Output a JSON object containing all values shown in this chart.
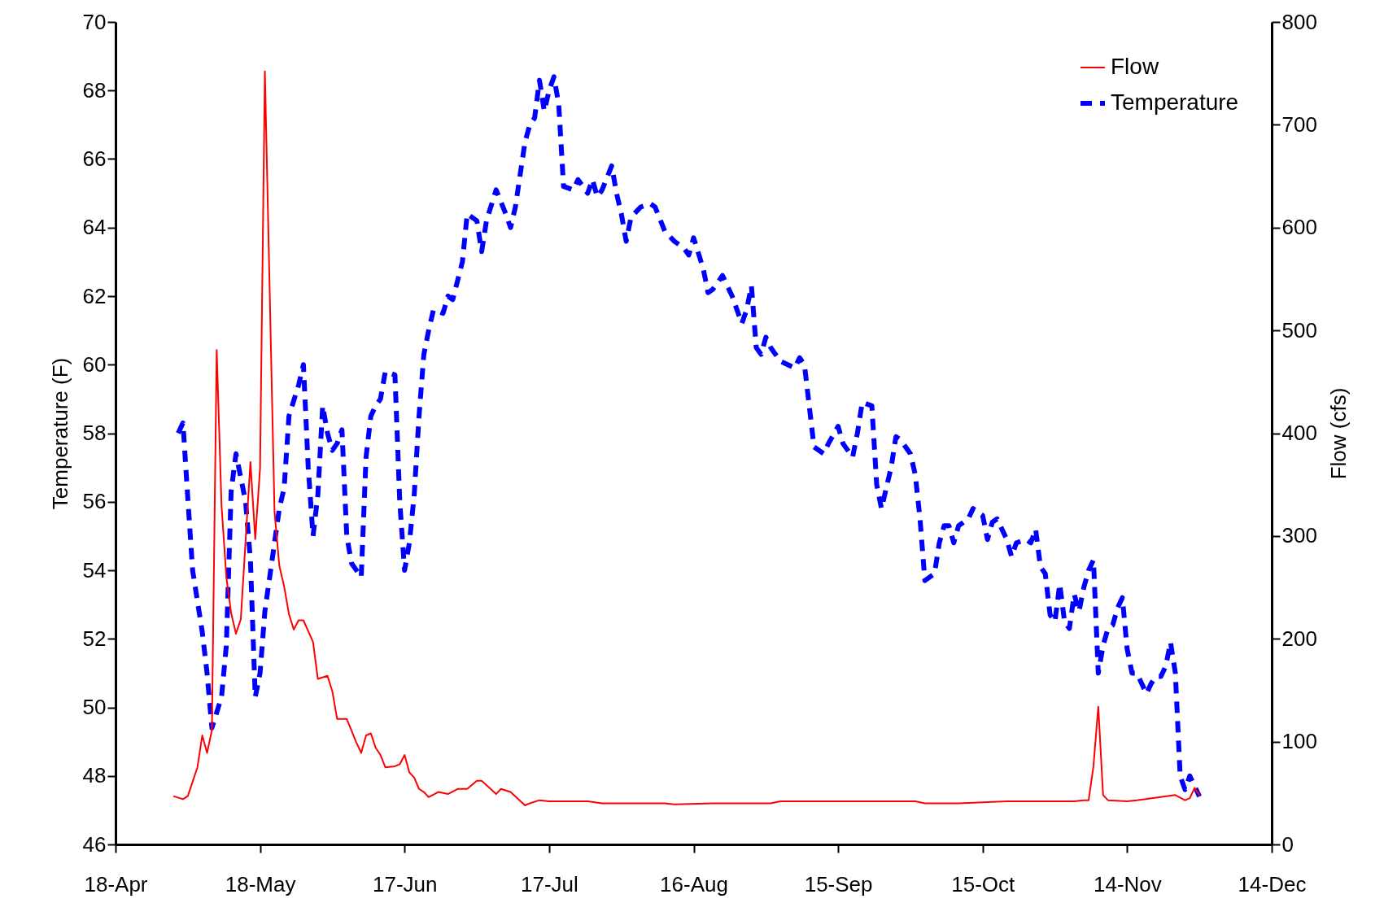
{
  "chart_data": {
    "type": "line",
    "ylabel": "Temperature (F)",
    "y2label": "Flow (cfs)",
    "xlim": [
      "--04-18",
      "--12-14"
    ],
    "xticks": [
      {
        "value": "--04-18",
        "label": "18-Apr"
      },
      {
        "value": "--05-18",
        "label": "18-May"
      },
      {
        "value": "--06-17",
        "label": "17-Jun"
      },
      {
        "value": "--07-17",
        "label": "17-Jul"
      },
      {
        "value": "--08-16",
        "label": "16-Aug"
      },
      {
        "value": "--09-15",
        "label": "15-Sep"
      },
      {
        "value": "--10-15",
        "label": "15-Oct"
      },
      {
        "value": "--11-14",
        "label": "14-Nov"
      },
      {
        "value": "--12-14",
        "label": "14-Dec"
      }
    ],
    "ylim": [
      46,
      70
    ],
    "yticks": [
      46,
      48,
      50,
      52,
      54,
      56,
      58,
      60,
      62,
      64,
      66,
      68,
      70
    ],
    "y2lim": [
      0,
      800
    ],
    "y2ticks": [
      0,
      100,
      200,
      300,
      400,
      500,
      600,
      700,
      800
    ],
    "legend": "top right",
    "series": [
      {
        "name": "Flow",
        "color": "#ff0000",
        "axis": "y2",
        "line_style": "solid",
        "x": [
          "--04-30",
          "--05-02",
          "--05-03",
          "--05-05",
          "--05-06",
          "--05-07",
          "--05-08",
          "--05-09",
          "--05-10",
          "--05-11",
          "--05-12",
          "--05-13",
          "--05-14",
          "--05-16",
          "--05-17",
          "--05-18",
          "--05-19",
          "--05-21",
          "--05-22",
          "--05-23",
          "--05-24",
          "--05-25",
          "--05-26",
          "--05-27",
          "--05-29",
          "--05-30",
          "--06-01",
          "--06-02",
          "--06-03",
          "--06-05",
          "--06-07",
          "--06-08",
          "--06-09",
          "--06-10",
          "--06-11",
          "--06-12",
          "--06-13",
          "--06-15",
          "--06-16",
          "--06-17",
          "--06-18",
          "--06-19",
          "--06-20",
          "--06-21",
          "--06-22",
          "--06-24",
          "--06-26",
          "--06-28",
          "--06-30",
          "--07-02",
          "--07-03",
          "--07-06",
          "--07-07",
          "--07-09",
          "--07-12",
          "--07-13",
          "--07-15",
          "--07-17",
          "--07-25",
          "--07-28",
          "--08-10",
          "--08-12",
          "--08-20",
          "--09-01",
          "--09-03",
          "--10-01",
          "--10-03",
          "--10-10",
          "--10-20",
          "--11-03",
          "--11-05",
          "--11-06",
          "--11-07",
          "--11-08",
          "--11-09",
          "--11-10",
          "--11-14",
          "--11-16",
          "--11-24",
          "--11-26",
          "--11-27",
          "--11-28",
          "--11-29"
        ],
        "values": [
          47,
          44,
          47,
          75,
          106,
          89,
          111,
          481,
          330,
          260,
          225,
          205,
          219,
          372,
          297,
          366,
          752,
          324,
          271,
          251,
          224,
          209,
          218,
          218,
          197,
          161,
          164,
          149,
          122,
          122,
          99,
          89,
          106,
          108,
          94,
          87,
          75,
          76,
          78,
          87,
          70,
          65,
          54,
          51,
          46,
          51,
          49,
          54,
          54,
          62,
          62,
          49,
          54,
          51,
          38,
          40,
          43,
          42,
          42,
          40,
          40,
          39,
          40,
          40,
          42,
          42,
          40,
          40,
          42,
          42,
          43,
          43,
          76,
          134,
          48,
          43,
          42,
          43,
          48,
          43,
          45,
          55,
          48
        ]
      },
      {
        "name": "Temperature",
        "color": "#0000ff",
        "axis": "y",
        "line_style": "dashed",
        "x": [
          "--05-01",
          "--05-02",
          "--05-03",
          "--05-04",
          "--05-06",
          "--05-07",
          "--05-08",
          "--05-10",
          "--05-11",
          "--05-12",
          "--05-13",
          "--05-15",
          "--05-16",
          "--05-17",
          "--05-18",
          "--05-19",
          "--05-21",
          "--05-22",
          "--05-23",
          "--05-24",
          "--05-26",
          "--05-27",
          "--05-28",
          "--05-29",
          "--05-30",
          "--05-31",
          "--06-01",
          "--06-02",
          "--06-03",
          "--06-04",
          "--06-05",
          "--06-06",
          "--06-08",
          "--06-09",
          "--06-10",
          "--06-11",
          "--06-12",
          "--06-13",
          "--06-15",
          "--06-16",
          "--06-17",
          "--06-18",
          "--06-19",
          "--06-20",
          "--06-21",
          "--06-22",
          "--06-23",
          "--06-25",
          "--06-26",
          "--06-27",
          "--06-29",
          "--06-30",
          "--07-02",
          "--07-03",
          "--07-04",
          "--07-06",
          "--07-08",
          "--07-09",
          "--07-10",
          "--07-12",
          "--07-13",
          "--07-14",
          "--07-15",
          "--07-16",
          "--07-17",
          "--07-18",
          "--07-19",
          "--07-20",
          "--07-22",
          "--07-23",
          "--07-25",
          "--07-26",
          "--07-27",
          "--07-28",
          "--07-30",
          "--07-31",
          "--08-01",
          "--08-02",
          "--08-03",
          "--08-05",
          "--08-07",
          "--08-08",
          "--08-10",
          "--08-12",
          "--08-14",
          "--08-15",
          "--08-16",
          "--08-18",
          "--08-19",
          "--08-20",
          "--08-22",
          "--08-24",
          "--08-26",
          "--08-27",
          "--08-28",
          "--08-29",
          "--08-30",
          "--08-31",
          "--09-01",
          "--09-03",
          "--09-06",
          "--09-07",
          "--09-08",
          "--09-09",
          "--09-10",
          "--09-12",
          "--09-13",
          "--09-15",
          "--09-16",
          "--09-18",
          "--09-19",
          "--09-20",
          "--09-22",
          "--09-23",
          "--09-24",
          "--09-26",
          "--09-27",
          "--09-28",
          "--09-30",
          "--10-01",
          "--10-02",
          "--10-03",
          "--10-05",
          "--10-06",
          "--10-07",
          "--10-08",
          "--10-09",
          "--10-10",
          "--10-12",
          "--10-13",
          "--10-15",
          "--10-16",
          "--10-17",
          "--10-18",
          "--10-20",
          "--10-21",
          "--10-22",
          "--10-24",
          "--10-25",
          "--10-26",
          "--10-27",
          "--10-28",
          "--10-29",
          "--10-30",
          "--10-31",
          "--11-01",
          "--11-02",
          "--11-03",
          "--11-04",
          "--11-05",
          "--11-06",
          "--11-07",
          "--11-08",
          "--11-09",
          "--11-10",
          "--11-11",
          "--11-12",
          "--11-13",
          "--11-14",
          "--11-15",
          "--11-16",
          "--11-18",
          "--11-19",
          "--11-20",
          "--11-21",
          "--11-22",
          "--11-23",
          "--11-24",
          "--11-25",
          "--11-26",
          "--11-27",
          "--11-28",
          "--11-29"
        ],
        "values": [
          58.0,
          58.3,
          56.1,
          54.0,
          52.2,
          51.0,
          49.4,
          50.3,
          51.8,
          56.3,
          57.4,
          56.0,
          54.3,
          50.3,
          51.0,
          52.8,
          54.8,
          55.8,
          56.4,
          58.5,
          59.4,
          60.0,
          57.0,
          55.0,
          56.2,
          58.8,
          58.0,
          57.5,
          57.7,
          58.1,
          55.0,
          54.2,
          53.8,
          57.3,
          58.5,
          58.8,
          59.0,
          59.8,
          59.7,
          56.0,
          54.0,
          54.8,
          56.2,
          58.5,
          60.3,
          61.0,
          61.6,
          61.5,
          62.0,
          61.9,
          63.0,
          64.4,
          64.2,
          63.3,
          64.2,
          65.1,
          64.4,
          64.0,
          64.6,
          66.5,
          67.0,
          67.2,
          68.3,
          67.4,
          68.0,
          68.4,
          67.6,
          65.2,
          65.1,
          65.4,
          65.0,
          65.4,
          64.9,
          65.1,
          65.8,
          65.0,
          64.4,
          63.6,
          64.3,
          64.6,
          64.7,
          64.6,
          63.9,
          63.6,
          63.4,
          63.2,
          63.7,
          62.8,
          62.1,
          62.2,
          62.6,
          62.0,
          61.2,
          61.6,
          62.3,
          60.5,
          60.3,
          60.8,
          60.5,
          60.1,
          59.9,
          60.2,
          60.0,
          58.8,
          57.6,
          57.4,
          57.7,
          58.2,
          57.7,
          57.3,
          58.0,
          58.9,
          58.8,
          56.5,
          55.8,
          57.0,
          57.9,
          57.8,
          57.4,
          56.8,
          55.5,
          53.7,
          53.9,
          54.8,
          55.3,
          55.3,
          54.8,
          55.3,
          55.5,
          55.8,
          55.6,
          54.9,
          55.4,
          55.5,
          54.9,
          54.4,
          54.8,
          54.9,
          54.8,
          55.2,
          54.1,
          53.9,
          52.7,
          52.5,
          53.6,
          52.5,
          52.3,
          53.3,
          52.8,
          53.5,
          54.0,
          54.3,
          51.0,
          51.8,
          52.3,
          52.4,
          52.9,
          53.2,
          51.7,
          51.0,
          51.0,
          50.4,
          50.7,
          50.9,
          50.9,
          51.2,
          51.9,
          51.0,
          48.0,
          47.6,
          48.0,
          47.7,
          47.4
        ]
      }
    ]
  }
}
